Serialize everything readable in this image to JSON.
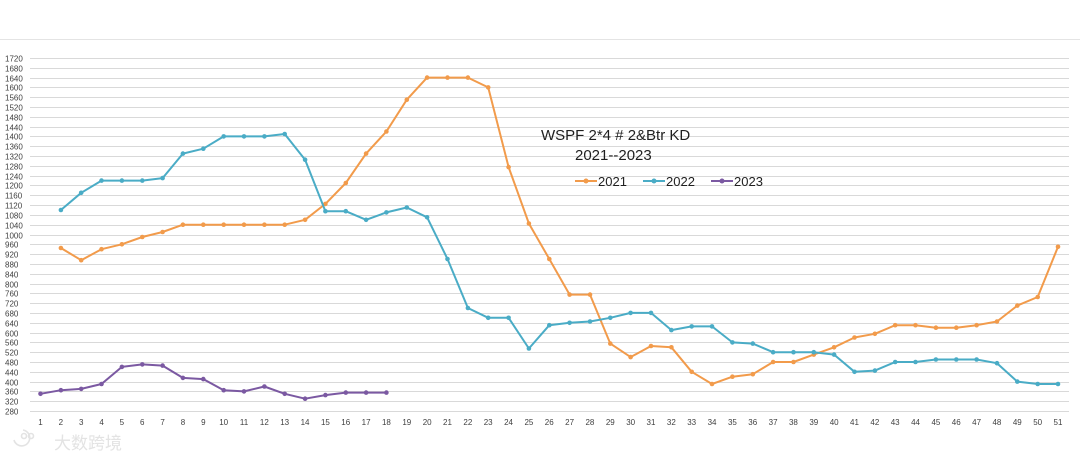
{
  "chart_data": {
    "type": "line",
    "title": "WSPF 2*4 # 2&Btr KD",
    "subtitle": "2021--2023",
    "xlabel": "",
    "ylabel": "",
    "ylim": [
      280,
      1720
    ],
    "ytick_step": 40,
    "x": [
      1,
      2,
      3,
      4,
      5,
      6,
      7,
      8,
      9,
      10,
      11,
      12,
      13,
      14,
      15,
      16,
      17,
      18,
      19,
      20,
      21,
      22,
      23,
      24,
      25,
      26,
      27,
      28,
      29,
      30,
      31,
      32,
      33,
      34,
      35,
      36,
      37,
      38,
      39,
      40,
      41,
      42,
      43,
      44,
      45,
      46,
      47,
      48,
      49,
      50,
      51
    ],
    "grid": true,
    "legend_position": "top-center",
    "series": [
      {
        "name": "2021",
        "color": "#f29b4b",
        "values": [
          null,
          945,
          895,
          940,
          960,
          990,
          1010,
          1040,
          1040,
          1040,
          1040,
          1040,
          1040,
          1060,
          1125,
          1210,
          1330,
          1420,
          1550,
          1640,
          1640,
          1640,
          1600,
          1275,
          1045,
          900,
          755,
          755,
          555,
          500,
          545,
          540,
          440,
          390,
          420,
          430,
          480,
          480,
          510,
          540,
          580,
          595,
          630,
          630,
          620,
          620,
          630,
          645,
          710,
          745,
          950
        ]
      },
      {
        "name": "2022",
        "color": "#4aacc6",
        "values": [
          null,
          1100,
          1170,
          1220,
          1220,
          1220,
          1230,
          1330,
          1350,
          1400,
          1400,
          1400,
          1410,
          1305,
          1095,
          1095,
          1060,
          1090,
          1110,
          1070,
          900,
          700,
          660,
          660,
          535,
          630,
          640,
          645,
          660,
          680,
          680,
          610,
          625,
          625,
          560,
          555,
          520,
          520,
          520,
          510,
          440,
          445,
          480,
          480,
          490,
          490,
          490,
          475,
          400,
          390,
          390
        ]
      },
      {
        "name": "2023",
        "color": "#7b59a2",
        "values": [
          350,
          365,
          370,
          390,
          460,
          470,
          465,
          415,
          410,
          365,
          360,
          380,
          350,
          330,
          345,
          355,
          355,
          355,
          null,
          null,
          null,
          null,
          null,
          null,
          null,
          null,
          null,
          null,
          null,
          null,
          null,
          null,
          null,
          null,
          null,
          null,
          null,
          null,
          null,
          null,
          null,
          null,
          null,
          null,
          null,
          null,
          null,
          null,
          null,
          null,
          null
        ]
      }
    ]
  },
  "watermark": {
    "text": "大数跨境",
    "icon": "brand-logo-icon"
  }
}
